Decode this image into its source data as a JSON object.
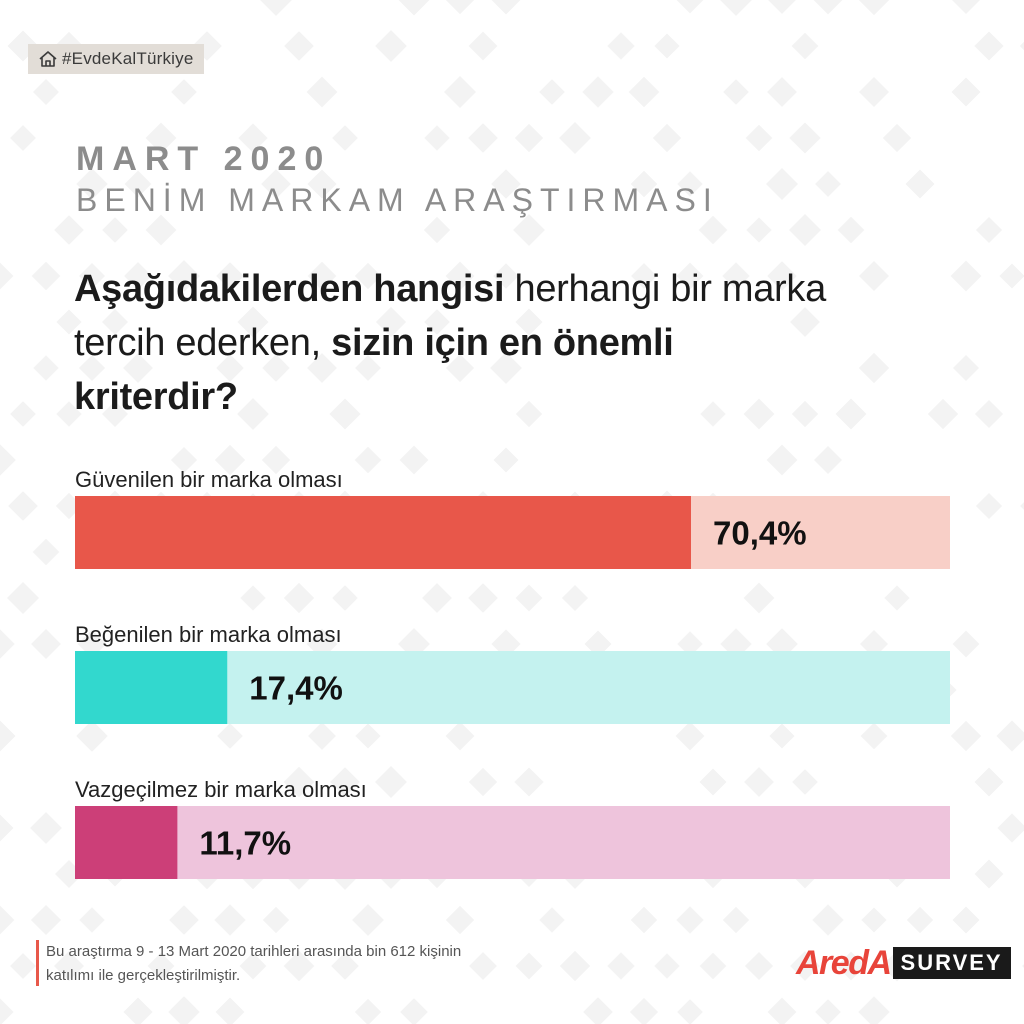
{
  "tag": {
    "icon": "house-icon",
    "label": "#EvdeKalTürkiye"
  },
  "header": {
    "line1": "MART 2020",
    "line2": "BENİM MARKAM ARAŞTIRMASI"
  },
  "question": {
    "part1": "Aşağıdakilerden hangisi",
    "part2": " herhangi bir marka tercih ederken,",
    "part3": " sizin için en önemli kriterdir?"
  },
  "chart_data": {
    "type": "bar",
    "orientation": "horizontal",
    "xlim": [
      0,
      100
    ],
    "categories": [
      "Güvenilen bir marka olması",
      "Beğenilen bir marka olması",
      "Vazgeçilmez bir marka olması"
    ],
    "values": [
      70.4,
      17.4,
      11.7
    ],
    "value_labels": [
      "70,4%",
      "17,4%",
      "11,7%"
    ],
    "colors": [
      "#e8574a",
      "#32d8ce",
      "#cc3f78"
    ],
    "track_colors": [
      "#f8cfc7",
      "#c4f2ef",
      "#eec4dc"
    ],
    "grid": false
  },
  "footer": {
    "line1": "Bu araştırma 9 - 13 Mart 2020 tarihleri arasında bin 612 kişinin",
    "line2": "katılımı ile gerçekleştirilmiştir."
  },
  "logo": {
    "brand": "AredA",
    "suffix": "SURVEY"
  }
}
